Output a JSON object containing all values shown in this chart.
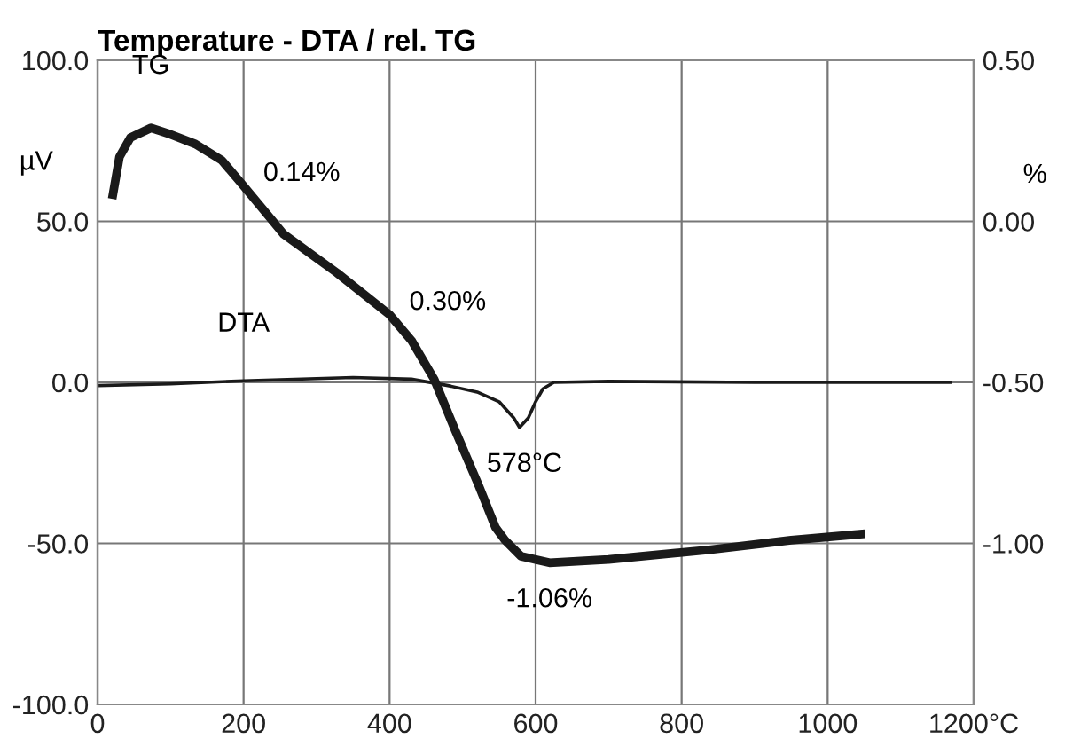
{
  "chart_data": {
    "type": "line",
    "title": "Temperature - DTA / rel. TG",
    "ylabel": "µV",
    "y2label": "%",
    "xlim": [
      0,
      1200
    ],
    "xticks": [
      0,
      200,
      400,
      600,
      800,
      1000,
      {
        "value": 1200,
        "label": "1200°C"
      }
    ],
    "ylim": [
      -100,
      100
    ],
    "yticks": [
      {
        "value": -100,
        "label": "-100.0"
      },
      {
        "value": -50,
        "label": "-50.0"
      },
      {
        "value": 0,
        "label": "0.0"
      },
      {
        "value": 50,
        "label": "50.0"
      },
      {
        "value": 100,
        "label": "100.0"
      }
    ],
    "y2lim": [
      -1.5,
      0.5
    ],
    "y2ticks": [
      {
        "value": -1.0,
        "label": "-1.00"
      },
      {
        "value": -0.5,
        "label": "-0.50"
      },
      {
        "value": 0,
        "label": "0.00"
      },
      {
        "value": 0.5,
        "label": "0.50"
      }
    ],
    "grid": true,
    "legend": false,
    "series": [
      {
        "name": "TG",
        "color": "#1a1a1a",
        "axis": "y2",
        "x": [
          20,
          30,
          45,
          73,
          100,
          134,
          170,
          200,
          255,
          328,
          400,
          430,
          461,
          490,
          522,
          545,
          558,
          580,
          619,
          700,
          838,
          950,
          1051
        ],
        "values": [
          0.07,
          0.2,
          0.26,
          0.29,
          0.27,
          0.24,
          0.19,
          0.11,
          -0.04,
          -0.16,
          -0.29,
          -0.37,
          -0.49,
          -0.65,
          -0.82,
          -0.95,
          -0.99,
          -1.04,
          -1.06,
          -1.05,
          -1.02,
          -0.99,
          -0.97
        ]
      },
      {
        "name": "DTA",
        "color": "#1a1a1a",
        "x": [
          0,
          100,
          200,
          350,
          430,
          480,
          520,
          550,
          570,
          578,
          590,
          600,
          610,
          625,
          700,
          900,
          1170
        ],
        "values": [
          -1,
          -0.5,
          0.5,
          1.5,
          1,
          -1,
          -3,
          -6,
          -11,
          -14,
          -11,
          -6,
          -2,
          0,
          0.3,
          0,
          0
        ]
      }
    ],
    "annotations": [
      {
        "text": "0.14%",
        "x": 200,
        "y": 61
      },
      {
        "text": "0.30%",
        "x": 400,
        "y": 21
      },
      {
        "text": "-1.06%",
        "x": 619,
        "y": -56
      },
      {
        "text": "578°C",
        "x": 578,
        "y": -14
      }
    ]
  }
}
